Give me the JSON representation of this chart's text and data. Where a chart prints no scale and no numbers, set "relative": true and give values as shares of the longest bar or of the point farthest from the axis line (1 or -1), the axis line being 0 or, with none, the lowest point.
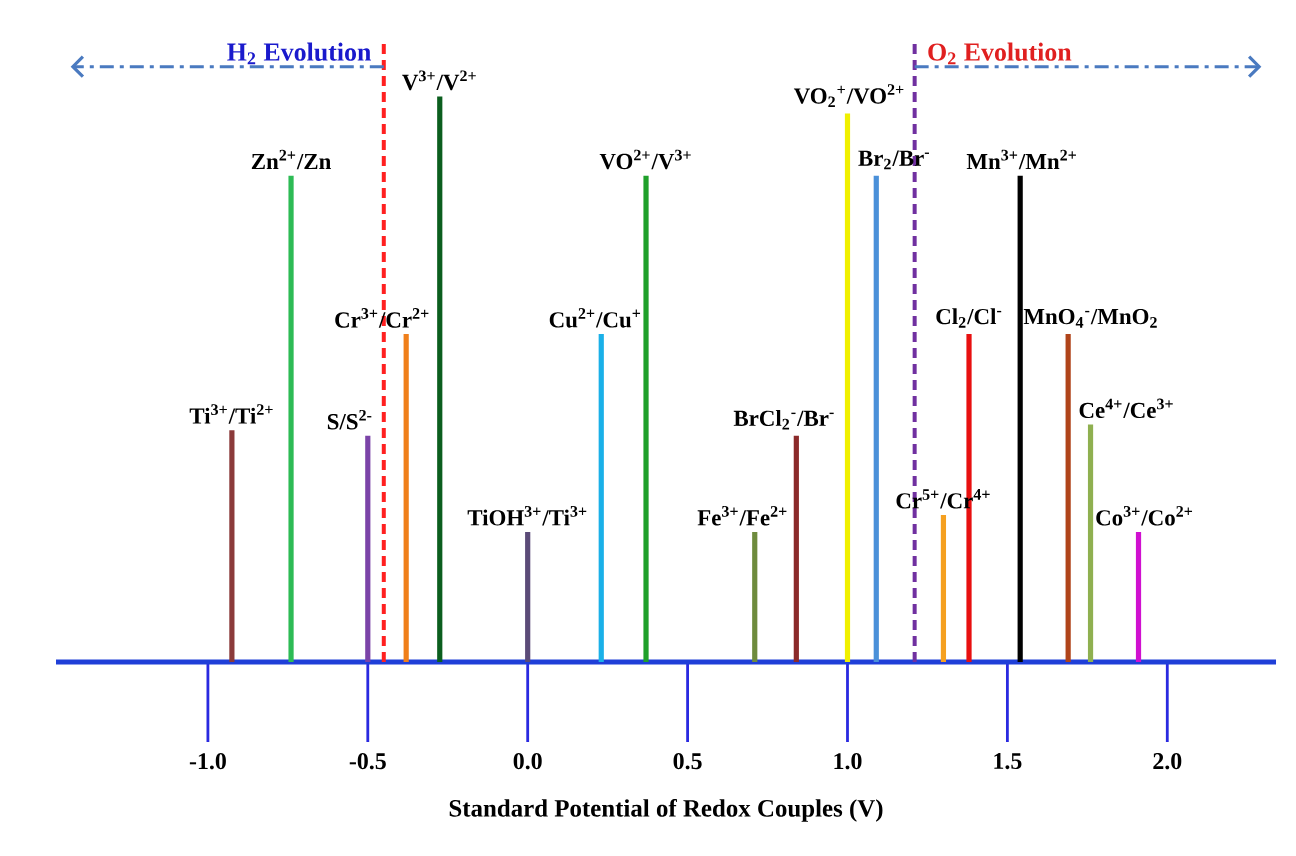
{
  "chart_data": {
    "type": "bar",
    "relative": true,
    "xlabel": "Standard Potential of Redox Couples (V)",
    "xlim": [
      -1.475,
      2.34
    ],
    "xticks": [
      {
        "value": -1.0,
        "label": "-1.0"
      },
      {
        "value": -0.5,
        "label": "-0.5"
      },
      {
        "value": 0.0,
        "label": "0.0"
      },
      {
        "value": 0.5,
        "label": "0.5"
      },
      {
        "value": 1.0,
        "label": "1.0"
      },
      {
        "value": 1.5,
        "label": "1.5"
      },
      {
        "value": 2.0,
        "label": "2.0"
      }
    ],
    "x": [
      -0.925,
      -0.74,
      -0.5,
      -0.38,
      -0.275,
      0.0,
      0.23,
      0.37,
      0.71,
      0.84,
      1.0,
      1.09,
      1.3,
      1.38,
      1.54,
      1.69,
      1.76,
      1.91
    ],
    "values": [
      0.41,
      0.86,
      0.4,
      0.58,
      1,
      0.23,
      0.58,
      0.86,
      0.23,
      0.4,
      0.97,
      0.86,
      0.26,
      0.58,
      0.86,
      0.58,
      0.42,
      0.23
    ],
    "colors": [
      "#8b3a3a",
      "#2dbb55",
      "#7b44a8",
      "#f07f1a",
      "#0b5e1e",
      "#5b4b78",
      "#1ab0e8",
      "#1fa02a",
      "#6e8b3d",
      "#8b2a2a",
      "#f0f000",
      "#4a90d9",
      "#f5a020",
      "#e81010",
      "#000000",
      "#b0441a",
      "#8fb050",
      "#d010d0"
    ],
    "annotations": [
      {
        "text": "Ti$^{3+}$/Ti$^{2+}$",
        "x": -0.925,
        "y": 0.41
      },
      {
        "text": "Zn$^{2+}$/Zn",
        "x": -0.74,
        "y": 0.86
      },
      {
        "text": "S/S$^{2-}$",
        "x": -0.5,
        "y": 0.4
      },
      {
        "text": "Cr$^{3+}$/Cr$^{2+}$",
        "x": -0.38,
        "y": 0.58
      },
      {
        "text": "V$^{3+}$/V$^{2+}$",
        "x": -0.275,
        "y": 1
      },
      {
        "text": "TiOH$^{3+}$/Ti$^{3+}$",
        "x": 0.0,
        "y": 0.23
      },
      {
        "text": "Cu$^{2+}$/Cu$^{+}$",
        "x": 0.23,
        "y": 0.58
      },
      {
        "text": "VO$^{2+}$/V$^{3+}$",
        "x": 0.37,
        "y": 0.86
      },
      {
        "text": "Fe$^{3+}$/Fe$^{2+}$",
        "x": 0.71,
        "y": 0.23
      },
      {
        "text": "BrCl$_{2}$$^{-}$/Br$^{-}$",
        "x": 0.84,
        "y": 0.4
      },
      {
        "text": "VO$_{2}$$^{+}$/VO$^{2+}$",
        "x": 1.0,
        "y": 0.97
      },
      {
        "text": "Br$_{2}$/Br$^{-}$",
        "x": 1.09,
        "y": 0.86
      },
      {
        "text": "Cr$^{5+}$/Cr$^{4+}$",
        "x": 1.3,
        "y": 0.26
      },
      {
        "text": "Cl$_{2}$/Cl$^{-}$",
        "x": 1.38,
        "y": 0.58
      },
      {
        "text": "Mn$^{3+}$/Mn$^{2+}$",
        "x": 1.54,
        "y": 0.86
      },
      {
        "text": "MnO$_{4}$$^{-}$/MnO$_{2}$",
        "x": 1.69,
        "y": 0.58
      },
      {
        "text": "Ce$^{4+}$/Ce$^{3+}$",
        "x": 1.76,
        "y": 0.42
      },
      {
        "text": "Co$^{3+}$/Co$^{2+}$",
        "x": 1.91,
        "y": 0.23
      }
    ],
    "ref_lines": [
      {
        "axis": "x",
        "value": -0.45,
        "label": "H$_{2}$ Evolution",
        "color": "#ff2020",
        "line_style": "dashed"
      },
      {
        "axis": "x",
        "value": 1.21,
        "label": "O$_{2}$ Evolution",
        "color": "#7030a0",
        "line_style": "dashed"
      }
    ]
  }
}
